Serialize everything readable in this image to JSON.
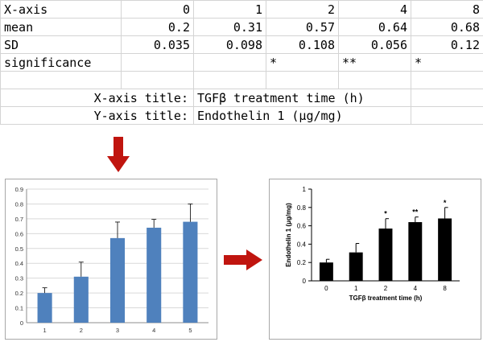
{
  "table": {
    "headers": [
      "X-axis",
      "0",
      "1",
      "2",
      "4",
      "8"
    ],
    "rows": [
      {
        "label": "mean",
        "cells": [
          "0.2",
          "0.31",
          "0.57",
          "0.64",
          "0.68"
        ]
      },
      {
        "label": "SD",
        "cells": [
          "0.035",
          "0.098",
          "0.108",
          "0.056",
          "0.12"
        ]
      },
      {
        "label": "significance",
        "cells": [
          "",
          "",
          "*",
          "**",
          "*"
        ]
      }
    ],
    "x_axis_title_label": "X-axis title:",
    "x_axis_title_value": "TGFβ treatment time (h)",
    "y_axis_title_label": "Y-axis title:",
    "y_axis_title_value": "Endothelin 1 (μg/mg)"
  },
  "colors": {
    "arrow": "#c0150f",
    "left_bar": "#4f81bd",
    "right_bar": "#000000",
    "grid": "#d9d9d9"
  },
  "chart_data": [
    {
      "type": "bar",
      "categories": [
        "1",
        "2",
        "3",
        "4",
        "5"
      ],
      "values": [
        0.2,
        0.31,
        0.57,
        0.64,
        0.68
      ],
      "errors": [
        0.035,
        0.098,
        0.108,
        0.056,
        0.12
      ],
      "yticks": [
        "0",
        "0.1",
        "0.2",
        "0.3",
        "0.4",
        "0.5",
        "0.6",
        "0.7",
        "0.8",
        "0.9"
      ],
      "ylim": [
        0,
        0.9
      ],
      "grid": true,
      "title": "",
      "xlabel": "",
      "ylabel": ""
    },
    {
      "type": "bar",
      "categories": [
        "0",
        "1",
        "2",
        "4",
        "8"
      ],
      "values": [
        0.2,
        0.31,
        0.57,
        0.64,
        0.68
      ],
      "errors": [
        0.035,
        0.098,
        0.108,
        0.056,
        0.12
      ],
      "significance": [
        "",
        "",
        "*",
        "**",
        "*"
      ],
      "yticks": [
        "0",
        "0.2",
        "0.4",
        "0.6",
        "0.8",
        "1"
      ],
      "ylim": [
        0,
        1
      ],
      "grid": false,
      "title": "",
      "xlabel": "TGFβ treatment time (h)",
      "ylabel": "Endothelin 1 (μg/mg)"
    }
  ]
}
